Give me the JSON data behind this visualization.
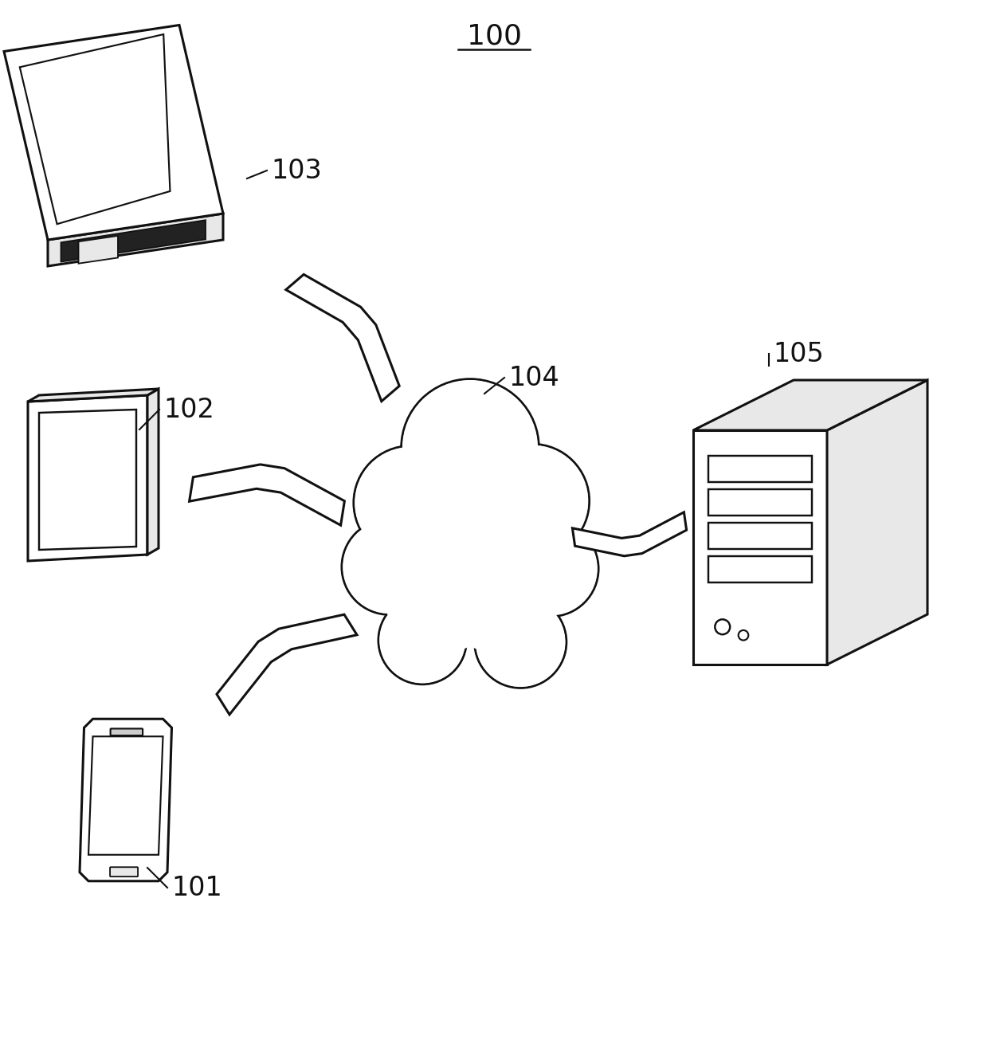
{
  "title": "100",
  "background_color": "#ffffff",
  "label_101": "101",
  "label_102": "102",
  "label_103": "103",
  "label_104": "104",
  "label_105": "105",
  "figsize": [
    12.4,
    13.14
  ],
  "dpi": 100,
  "line_color": "#111111",
  "line_width": 2.2,
  "face_color_light": "#ffffff",
  "face_color_mid": "#e8e8e8",
  "face_color_dark": "#cccccc",
  "face_color_darker": "#aaaaaa",
  "face_kbd": "#222222"
}
